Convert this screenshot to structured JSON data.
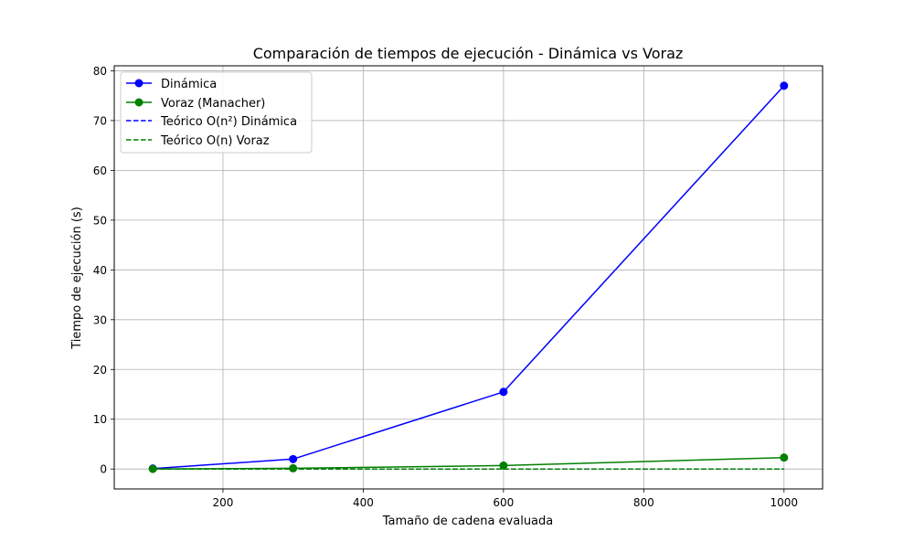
{
  "chart_data": {
    "type": "line",
    "title": "Comparación de tiempos de ejecución - Dinámica vs Voraz",
    "xlabel": "Tamaño de cadena evaluada",
    "ylabel": "Tiempo de ejecución (s)",
    "xlim": [
      45,
      1055
    ],
    "ylim": [
      -4,
      81
    ],
    "xticks": [
      200,
      400,
      600,
      800,
      1000
    ],
    "yticks": [
      0,
      10,
      20,
      30,
      40,
      50,
      60,
      70,
      80
    ],
    "grid": true,
    "legend_position": "top-left",
    "series": [
      {
        "name": "Dinámica",
        "style": "solid",
        "marker": "circle",
        "color": "#0000ff",
        "x": [
          100,
          300,
          600,
          1000
        ],
        "y": [
          0.1,
          2.0,
          15.5,
          77.0
        ]
      },
      {
        "name": "Voraz (Manacher)",
        "style": "solid",
        "marker": "circle",
        "color": "#008000",
        "x": [
          100,
          300,
          600,
          1000
        ],
        "y": [
          0.02,
          0.15,
          0.7,
          2.3
        ]
      },
      {
        "name": "Teórico O(n²) Dinámica",
        "style": "dashed",
        "marker": "none",
        "color": "#0000ff",
        "x": [
          100,
          300,
          600,
          1000
        ],
        "y": [
          0.0,
          0.0,
          0.0,
          0.0
        ]
      },
      {
        "name": "Teórico O(n) Voraz",
        "style": "dashed",
        "marker": "none",
        "color": "#008000",
        "x": [
          100,
          300,
          600,
          1000
        ],
        "y": [
          0.0,
          0.0,
          0.0,
          0.0
        ]
      }
    ]
  }
}
